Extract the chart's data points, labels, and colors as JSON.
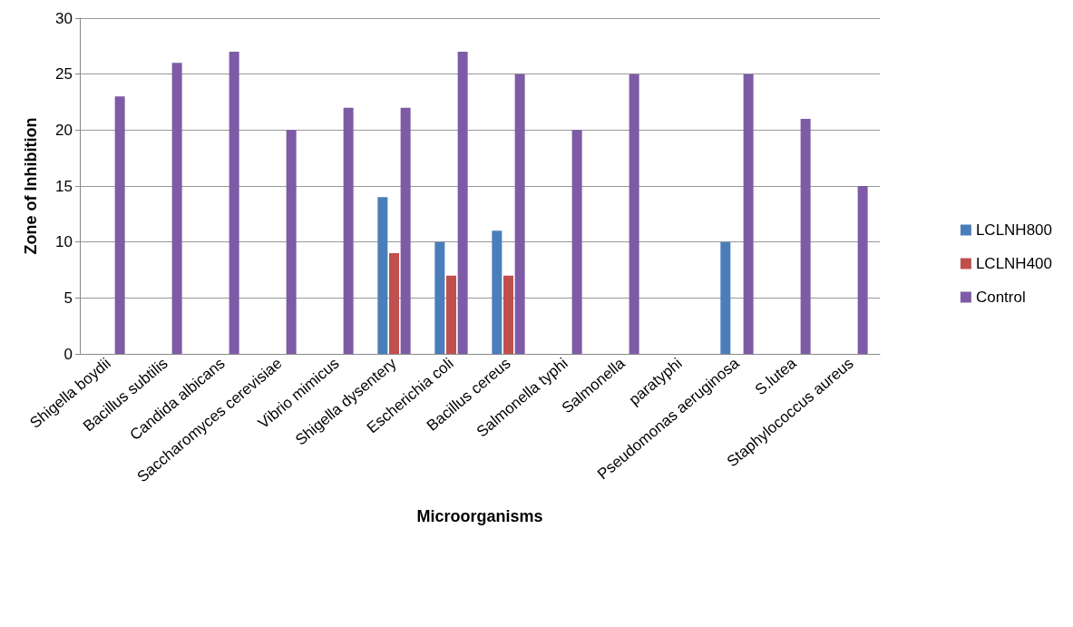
{
  "chart_data": {
    "type": "bar",
    "xlabel": "Microorganisms",
    "ylabel": "Zone of Inhibition",
    "categories": [
      "Shigella boydii",
      "Bacillus subtilis",
      "Candida albicans",
      "Saccharomyces cerevisiae",
      "Vibrio mimicus",
      "Shigella dysentery",
      "Escherichia coli",
      "Bacillus cereus",
      "Salmonella typhi",
      "Salmonella",
      "paratyphi",
      "Pseudomonas aeruginosa",
      "S.lutea",
      "Staphylococcus aureus"
    ],
    "series": [
      {
        "name": "LCLNH800",
        "color": "#4a7ebb",
        "values": [
          null,
          null,
          null,
          null,
          null,
          14,
          10,
          11,
          null,
          null,
          null,
          10,
          null,
          null
        ]
      },
      {
        "name": "LCLNH400",
        "color": "#c0504d",
        "values": [
          null,
          null,
          null,
          null,
          null,
          9,
          7,
          7,
          null,
          null,
          null,
          null,
          null,
          null
        ]
      },
      {
        "name": "Control",
        "color": "#7d5ba6",
        "values": [
          23,
          26,
          27,
          20,
          22,
          22,
          27,
          25,
          20,
          25,
          null,
          25,
          21,
          15
        ]
      }
    ],
    "ylim": [
      0,
      30
    ],
    "yticks": [
      0,
      5,
      10,
      15,
      20,
      25,
      30
    ],
    "grid": "y",
    "legend": "right"
  }
}
